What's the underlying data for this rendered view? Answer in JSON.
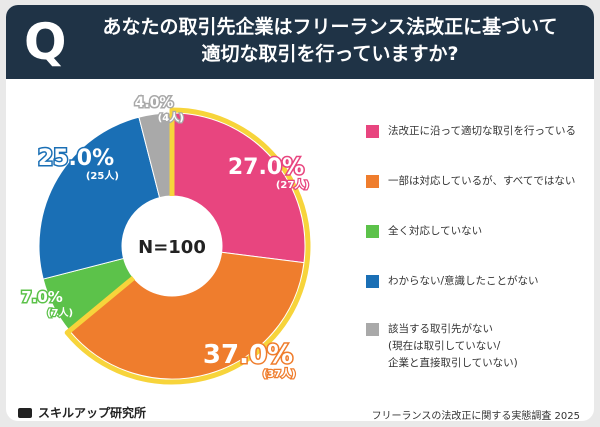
{
  "header": {
    "badge": "Q",
    "title": "あなたの取引先企業はフリーランス法改正に基づいて\n適切な取引を行っていますか?"
  },
  "chart_data": {
    "type": "pie",
    "center_label": "N=100",
    "slices": [
      {
        "label": "法改正に沿って適切な取引を行っている",
        "value": 27.0,
        "count": 27,
        "percent_text": "27.0%",
        "count_text": "(27人)",
        "color": "#e8457f"
      },
      {
        "label": "一部は対応しているが、すべてではない",
        "value": 37.0,
        "count": 37,
        "percent_text": "37.0%",
        "count_text": "(37人)",
        "color": "#ef7d2d"
      },
      {
        "label": "全く対応していない",
        "value": 7.0,
        "count": 7,
        "percent_text": "7.0%",
        "count_text": "(7人)",
        "color": "#5cc24a"
      },
      {
        "label": "わからない/意識したことがない",
        "value": 25.0,
        "count": 25,
        "percent_text": "25.0%",
        "count_text": "(25人)",
        "color": "#1a6fb5"
      },
      {
        "label": "該当する取引先がない\n(現在は取引していない/\n企業と直接取引していない)",
        "value": 4.0,
        "count": 4,
        "percent_text": "4.0%",
        "count_text": "(4人)",
        "color": "#a9a9a9"
      }
    ]
  },
  "footer": {
    "logo_text": "スキルアップ研究所",
    "source": "フリーランスの法改正に関する実態調査 2025"
  }
}
